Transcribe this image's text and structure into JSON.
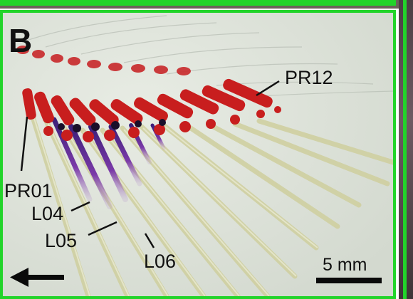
{
  "panel": {
    "letter": "B",
    "frame_color": "#22d42a",
    "labels": {
      "pr12": "PR12",
      "pr01": "PR01",
      "l04": "L04",
      "l05": "L05",
      "l06": "L06"
    },
    "scale_bar": {
      "label": "5 mm"
    },
    "arrow": "left-arrow-icon",
    "colors": {
      "background": "#dfe4dc",
      "cartilage_red": "#c81e1e",
      "stain_purple": "#6a2a9c",
      "ray_yellow": "#d8d7a8"
    }
  }
}
